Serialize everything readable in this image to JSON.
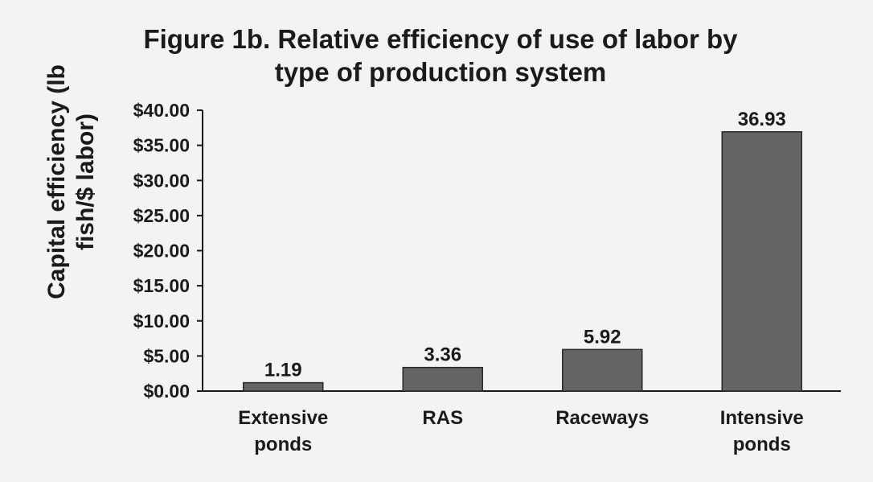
{
  "chart_data": {
    "type": "bar",
    "title_lines": [
      "Figure 1b. Relative efficiency of use of labor by",
      "type of production system"
    ],
    "ylabel_lines": [
      "Capital efficiency (lb",
      "fish/$ labor)"
    ],
    "xlabel": "",
    "categories": [
      [
        "Extensive",
        "ponds"
      ],
      [
        "RAS"
      ],
      [
        "Raceways"
      ],
      [
        "Intensive",
        "ponds"
      ]
    ],
    "values": [
      1.19,
      3.36,
      5.92,
      36.93
    ],
    "data_labels": [
      "1.19",
      "3.36",
      "5.92",
      "36.93"
    ],
    "y_ticks": [
      "$0.00",
      "$5.00",
      "$10.00",
      "$15.00",
      "$20.00",
      "$25.00",
      "$30.00",
      "$35.00",
      "$40.00"
    ],
    "ylim": [
      0,
      40
    ],
    "grid": false,
    "legend": "none",
    "colors": {
      "bar": "#646464",
      "bar_edge": "#2a2a2a",
      "text": "#1a1a1a",
      "axis": "#1a1a1a"
    }
  }
}
